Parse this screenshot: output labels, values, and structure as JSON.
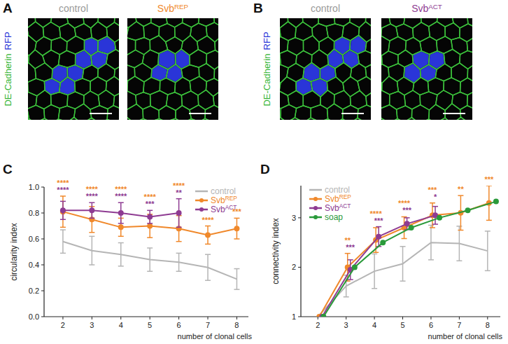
{
  "image_panels": [
    {
      "panel_label": "A",
      "side_label": [
        {
          "text": "DE-Cadherin",
          "color": "#35b535"
        },
        {
          "text": "RFP",
          "color": "#2a35d8"
        }
      ],
      "images": [
        {
          "title": "control",
          "color": "#9a9a9a"
        },
        {
          "title": "SvbREP",
          "color": "#f0882a"
        }
      ]
    },
    {
      "panel_label": "B",
      "side_label": [
        {
          "text": "DE-Cadherin",
          "color": "#35b535"
        },
        {
          "text": "RFP",
          "color": "#2a35d8"
        }
      ],
      "images": [
        {
          "title": "control",
          "color": "#9a9a9a"
        },
        {
          "title": "SvbACT",
          "color": "#8e3b92"
        }
      ]
    }
  ],
  "chart_data": [
    {
      "type": "line",
      "panel_label": "C",
      "x_label": "number of clonal cells",
      "y_label": "circularity index",
      "x": [
        2,
        3,
        4,
        5,
        6,
        7,
        8
      ],
      "xlim": [
        1.35,
        8.4
      ],
      "xticks": [
        2,
        3,
        4,
        5,
        6,
        7,
        8
      ],
      "ylim": [
        0,
        1
      ],
      "yticks": [
        {
          "value": 0,
          "label": "0.0"
        },
        0.2,
        0.4,
        0.6,
        0.8,
        {
          "value": 1,
          "label": "1.0"
        }
      ],
      "legend": "upper right",
      "series": [
        {
          "name": "control",
          "color": "#b5b5b5",
          "marker": "none",
          "values": [
            0.58,
            0.51,
            0.48,
            0.44,
            0.42,
            0.38,
            0.29
          ],
          "errors": [
            0.09,
            0.11,
            0.09,
            0.09,
            0.07,
            0.1,
            0.08
          ]
        },
        {
          "name": "SvbREP",
          "color": "#f0882a",
          "marker": "circle",
          "values": [
            0.81,
            0.75,
            0.69,
            0.7,
            0.68,
            0.63,
            0.68
          ],
          "errors": [
            0.12,
            0.1,
            0.07,
            0.09,
            0.1,
            0.07,
            0.08
          ],
          "significance": [
            "****",
            "****",
            "****",
            "****",
            "****",
            "****",
            "***"
          ]
        },
        {
          "name": "SvbACT",
          "color": "#8e3b92",
          "marker": "circle",
          "values": [
            0.82,
            0.82,
            0.8,
            0.77,
            0.8,
            null,
            null
          ],
          "errors": [
            0.07,
            0.06,
            0.08,
            0.05,
            0.11,
            null,
            null
          ],
          "significance": [
            "****",
            "****",
            "****",
            "***",
            "**",
            null,
            null
          ]
        }
      ]
    },
    {
      "type": "line",
      "panel_label": "D",
      "x_label": "number of clonal cells",
      "y_label": "connectivity index",
      "xlim": [
        1.4,
        8.45
      ],
      "xticks": [
        2,
        3,
        4,
        5,
        6,
        7,
        8
      ],
      "ylim": [
        1,
        3.65
      ],
      "yticks": [
        1,
        2,
        3
      ],
      "legend": "upper left",
      "series": [
        {
          "name": "control",
          "color": "#b5b5b5",
          "marker": "none",
          "x": [
            2,
            3,
            4,
            5,
            6,
            7,
            8
          ],
          "values": [
            1,
            1.62,
            1.92,
            2.07,
            2.5,
            2.48,
            2.33
          ],
          "errors": [
            null,
            0.22,
            0.35,
            0.35,
            0.35,
            0.35,
            0.4
          ]
        },
        {
          "name": "SvbREP",
          "color": "#f0882a",
          "marker": "circle",
          "x": [
            2.05,
            3.05,
            4.05,
            5.05,
            6.05,
            7.05,
            8.05
          ],
          "values": [
            1,
            2,
            2.55,
            2.8,
            3.05,
            3.1,
            3.3
          ],
          "errors": [
            null,
            0.28,
            0.25,
            0.22,
            0.25,
            0.35,
            0.35
          ],
          "significance": [
            null,
            "**",
            "****",
            "****",
            "***",
            "**",
            "***"
          ]
        },
        {
          "name": "SvbACT",
          "color": "#8e3b92",
          "marker": "circle",
          "x": [
            2.15,
            3.15,
            4.15,
            5.15,
            6.15,
            7.15,
            8.15
          ],
          "values": [
            1,
            1.95,
            2.62,
            2.88,
            3.05,
            null,
            null
          ],
          "errors": [
            null,
            0.2,
            0.2,
            0.12,
            0.18,
            null,
            null
          ],
          "significance": [
            null,
            "***",
            "***",
            "***",
            "*",
            null,
            null
          ]
        },
        {
          "name": "soap",
          "color": "#2a9a3a",
          "marker": "circle",
          "x": [
            2.2,
            3.3,
            4.3,
            5.3,
            6.3,
            7.3,
            8.3
          ],
          "values": [
            1,
            2,
            2.5,
            2.8,
            3,
            3.15,
            3.33
          ]
        }
      ]
    }
  ]
}
